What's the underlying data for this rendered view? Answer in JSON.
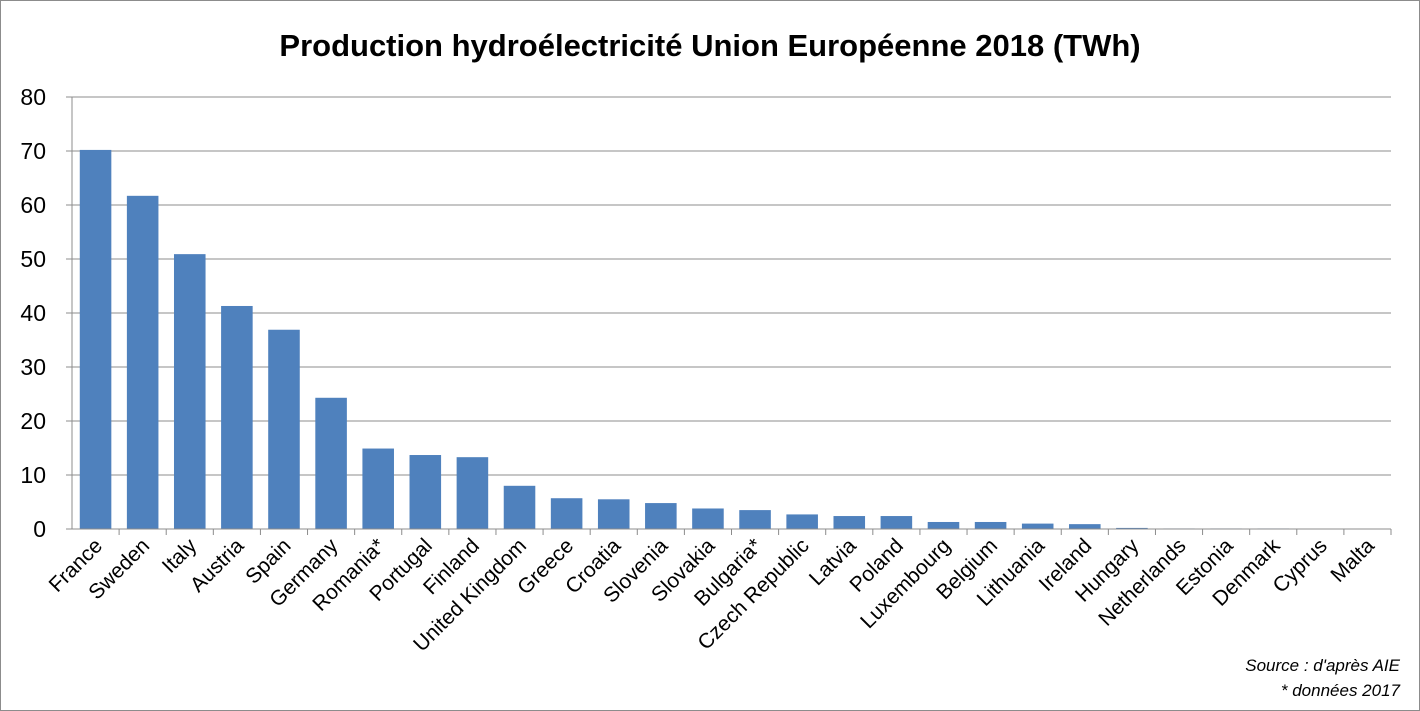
{
  "chart_data": {
    "type": "bar",
    "title": "Production hydroélectricité Union Européenne 2018 (TWh)",
    "xlabel": "",
    "ylabel": "",
    "ylim": [
      0,
      80
    ],
    "yticks": [
      0,
      10,
      20,
      30,
      40,
      50,
      60,
      70,
      80
    ],
    "grid": true,
    "bar_color": "#4f81bd",
    "categories": [
      "France",
      "Sweden",
      "Italy",
      "Austria",
      "Spain",
      "Germany",
      "Romania*",
      "Portugal",
      "Finland",
      "United Kingdom",
      "Greece",
      "Croatia",
      "Slovenia",
      "Slovakia",
      "Bulgaria*",
      "Czech Republic",
      "Latvia",
      "Poland",
      "Luxembourg",
      "Belgium",
      "Lithuania",
      "Ireland",
      "Hungary",
      "Netherlands",
      "Estonia",
      "Denmark",
      "Cyprus",
      "Malta"
    ],
    "values": [
      70.2,
      61.7,
      50.9,
      41.3,
      36.9,
      24.3,
      14.9,
      13.7,
      13.3,
      8.0,
      5.7,
      5.5,
      4.8,
      3.8,
      3.5,
      2.7,
      2.4,
      2.4,
      1.3,
      1.3,
      1.0,
      0.9,
      0.2,
      0.1,
      0.1,
      0.1,
      0.0,
      0.0
    ]
  },
  "notes": {
    "source": "Source : d'après AIE",
    "data_year": "* données 2017"
  }
}
